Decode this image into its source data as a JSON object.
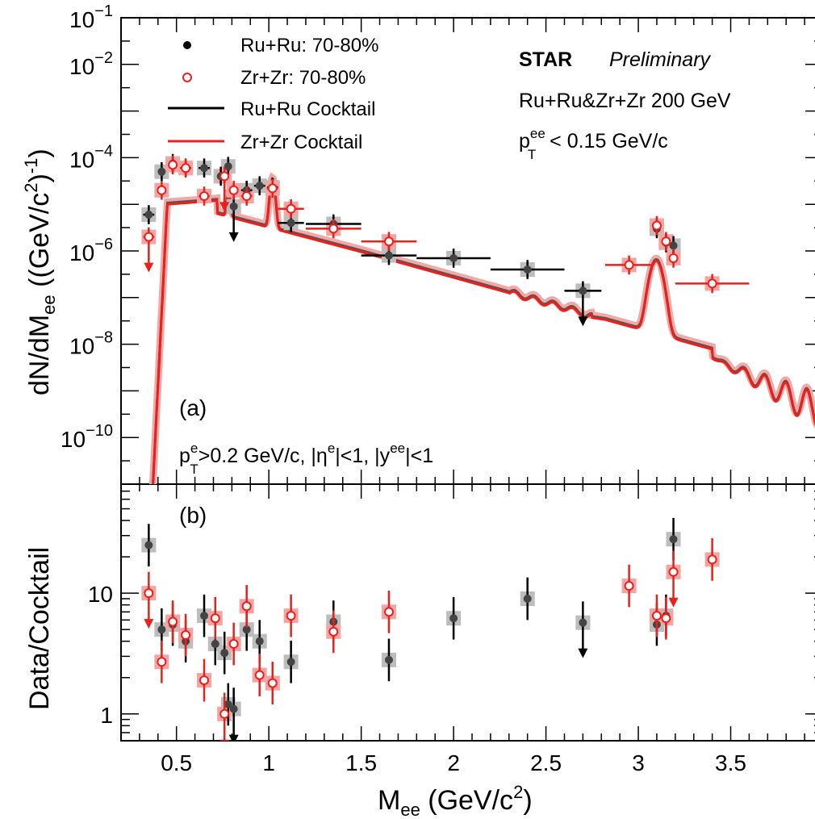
{
  "chart_data": [
    {
      "panel": "(a)",
      "type": "scatter",
      "ylabel": "dN/dM_ee ((GeV/c^2)^-1)",
      "xlabel": "M_ee (GeV/c^2)",
      "ylog": true,
      "xlim": [
        0.2,
        4.0
      ],
      "ylim_exp": [
        -11.0,
        -1.0
      ],
      "ytick_exponents": [
        -10,
        -8,
        -6,
        -4,
        -2,
        -1
      ],
      "xticks": [
        0.5,
        1,
        1.5,
        2,
        2.5,
        3,
        3.5
      ],
      "xtick_labels": [
        "0.5",
        "1",
        "1.5",
        "2",
        "2.5",
        "3",
        "3.5"
      ],
      "legend": [
        {
          "label": "Ru+Ru: 70-80%",
          "marker": "filled-circle",
          "color": "#000000"
        },
        {
          "label": "Zr+Zr: 70-80%",
          "marker": "open-circle",
          "color": "#e8211d"
        },
        {
          "label": "Ru+Ru Cocktail",
          "marker": "line",
          "color": "#000000"
        },
        {
          "label": "Zr+Zr Cocktail",
          "marker": "line",
          "color": "#e8211d"
        }
      ],
      "annotations": {
        "experiment": "STAR",
        "status": "Preliminary",
        "system": "Ru+Ru&Zr+Zr 200 GeV",
        "pt_cut_prefix": "p",
        "pt_cut_sup": "ee",
        "pt_cut_sub": "T",
        "pt_cut_rest": " < 0.15 GeV/c",
        "panel_label": "(a)",
        "cuts": "pT^e>0.2 GeV/c, |η^e|<1, |y^ee|<1"
      },
      "series": [
        {
          "name": "Ru+Ru: 70-80%",
          "color": "#000000",
          "points": [
            {
              "x": 0.35,
              "xerr": 0.03,
              "y": "6e-6"
            },
            {
              "x": 0.42,
              "xerr": 0.02,
              "y": "5e-5"
            },
            {
              "x": 0.48,
              "xerr": 0.02,
              "y": "7.5e-5"
            },
            {
              "x": 0.55,
              "xerr": 0.03,
              "y": "6e-5"
            },
            {
              "x": 0.65,
              "xerr": 0.03,
              "y": "6e-5"
            },
            {
              "x": 0.74,
              "xerr": 0.015,
              "y": "4e-5"
            },
            {
              "x": 0.78,
              "xerr": 0.015,
              "y": "6.5e-5"
            },
            {
              "x": 0.81,
              "xerr": 0.015,
              "y": "9e-6",
              "limit": true
            },
            {
              "x": 0.88,
              "xerr": 0.03,
              "y": "2e-5"
            },
            {
              "x": 0.95,
              "xerr": 0.03,
              "y": "2.5e-5"
            },
            {
              "x": 1.02,
              "xerr": 0.03,
              "y": "2.3e-5"
            },
            {
              "x": 1.12,
              "xerr": 0.07,
              "y": "4e-6"
            },
            {
              "x": 1.35,
              "xerr": 0.15,
              "y": "3.8e-6"
            },
            {
              "x": 1.65,
              "xerr": 0.15,
              "y": "8e-7"
            },
            {
              "x": 2.0,
              "xerr": 0.2,
              "y": "7e-7"
            },
            {
              "x": 2.4,
              "xerr": 0.2,
              "y": "4e-7"
            },
            {
              "x": 2.7,
              "xerr": 0.1,
              "y": "1.4e-7",
              "limit": true
            },
            {
              "x": 3.1,
              "xerr": 0.02,
              "y": "3e-6"
            },
            {
              "x": 3.15,
              "xerr": 0.02,
              "y": "1.5e-6"
            },
            {
              "x": 3.19,
              "xerr": 0.02,
              "y": "1.3e-6"
            }
          ]
        },
        {
          "name": "Zr+Zr: 70-80%",
          "color": "#e8211d",
          "points": [
            {
              "x": 0.35,
              "xerr": 0.03,
              "y": "2e-6",
              "limit": true
            },
            {
              "x": 0.42,
              "xerr": 0.02,
              "y": "2e-5"
            },
            {
              "x": 0.48,
              "xerr": 0.02,
              "y": "7e-5"
            },
            {
              "x": 0.55,
              "xerr": 0.03,
              "y": "6e-5"
            },
            {
              "x": 0.65,
              "xerr": 0.03,
              "y": "1.5e-5"
            },
            {
              "x": 0.76,
              "xerr": 0.015,
              "y": "4e-5",
              "limit": true
            },
            {
              "x": 0.81,
              "xerr": 0.015,
              "y": "2e-5"
            },
            {
              "x": 0.88,
              "xerr": 0.03,
              "y": "1.5e-5"
            },
            {
              "x": 1.02,
              "xerr": 0.03,
              "y": "2.2e-5"
            },
            {
              "x": 1.12,
              "xerr": 0.07,
              "y": "8e-6"
            },
            {
              "x": 1.35,
              "xerr": 0.15,
              "y": "3e-6"
            },
            {
              "x": 1.65,
              "xerr": 0.15,
              "y": "1.6e-6"
            },
            {
              "x": 2.95,
              "xerr": 0.13,
              "y": "5e-7"
            },
            {
              "x": 3.1,
              "xerr": 0.02,
              "y": "3.5e-6"
            },
            {
              "x": 3.15,
              "xerr": 0.02,
              "y": "1.6e-6"
            },
            {
              "x": 3.19,
              "xerr": 0.02,
              "y": "7e-7"
            },
            {
              "x": 3.4,
              "xerr": 0.2,
              "y": "2e-7"
            }
          ]
        }
      ]
    },
    {
      "panel": "(b)",
      "type": "scatter",
      "ylabel": "Data/Cocktail",
      "xlabel": "M_ee (GeV/c^2)",
      "ylog": true,
      "xlim": [
        0.2,
        4.0
      ],
      "ylim": [
        0.6,
        80
      ],
      "ytick_labels": [
        "1",
        "10"
      ],
      "panel_label": "(b)",
      "series": [
        {
          "name": "Ru+Ru: 70-80%",
          "color": "#000000",
          "points": [
            {
              "x": 0.35,
              "y": 25
            },
            {
              "x": 0.42,
              "y": 5
            },
            {
              "x": 0.48,
              "y": 5.5
            },
            {
              "x": 0.55,
              "y": 4
            },
            {
              "x": 0.65,
              "y": 6.5
            },
            {
              "x": 0.71,
              "y": 3.8
            },
            {
              "x": 0.76,
              "y": 3.2
            },
            {
              "x": 0.78,
              "y": 1.2
            },
            {
              "x": 0.81,
              "y": 1.1,
              "limit": true
            },
            {
              "x": 0.88,
              "y": 5
            },
            {
              "x": 0.95,
              "y": 4
            },
            {
              "x": 1.02,
              "y": 1.8
            },
            {
              "x": 1.12,
              "y": 2.7
            },
            {
              "x": 1.35,
              "y": 5.8
            },
            {
              "x": 1.65,
              "y": 2.8
            },
            {
              "x": 2.0,
              "y": 6.2
            },
            {
              "x": 2.4,
              "y": 9
            },
            {
              "x": 2.7,
              "y": 5.7,
              "limit": true
            },
            {
              "x": 3.1,
              "y": 5.5
            },
            {
              "x": 3.15,
              "y": 6.5
            },
            {
              "x": 3.19,
              "y": 28
            }
          ]
        },
        {
          "name": "Zr+Zr: 70-80%",
          "color": "#e8211d",
          "points": [
            {
              "x": 0.35,
              "y": 10,
              "limit": true
            },
            {
              "x": 0.42,
              "y": 2.7
            },
            {
              "x": 0.48,
              "y": 5.8
            },
            {
              "x": 0.55,
              "y": 4.5
            },
            {
              "x": 0.65,
              "y": 1.9
            },
            {
              "x": 0.71,
              "y": 6.2
            },
            {
              "x": 0.76,
              "y": 1.0,
              "limit": true
            },
            {
              "x": 0.81,
              "y": 3.8
            },
            {
              "x": 0.88,
              "y": 7.8
            },
            {
              "x": 0.95,
              "y": 2.1
            },
            {
              "x": 1.02,
              "y": 1.8
            },
            {
              "x": 1.12,
              "y": 6.5
            },
            {
              "x": 1.35,
              "y": 4.8
            },
            {
              "x": 1.65,
              "y": 7
            },
            {
              "x": 2.95,
              "y": 11.5
            },
            {
              "x": 3.1,
              "y": 6.5
            },
            {
              "x": 3.15,
              "y": 6.2
            },
            {
              "x": 3.19,
              "y": 15,
              "limit": true
            },
            {
              "x": 3.4,
              "y": 19
            }
          ]
        }
      ]
    }
  ],
  "labels": {
    "top_ylabel_main": "dN/dM",
    "top_ylabel_sub": "ee",
    "top_ylabel_rest": " ((GeV/c",
    "top_ylabel_sup": "2",
    "top_ylabel_end": ")",
    "top_ylabel_sup2": "-1",
    "top_ylabel_close": ")",
    "bottom_ylabel": "Data/Cocktail",
    "xlabel_main": "M",
    "xlabel_sub": "ee",
    "xlabel_rest": " (GeV/c",
    "xlabel_sup": "2",
    "xlabel_close": ")",
    "ten": "10",
    "cuts_a": "p",
    "cuts_a_sup": "e",
    "cuts_a_sub": "T",
    "cuts_b": ">0.2 GeV/c, |η",
    "cuts_b_sup": "e",
    "cuts_c": "|<1, |y",
    "cuts_c_sup": "ee",
    "cuts_d": "|<1"
  }
}
